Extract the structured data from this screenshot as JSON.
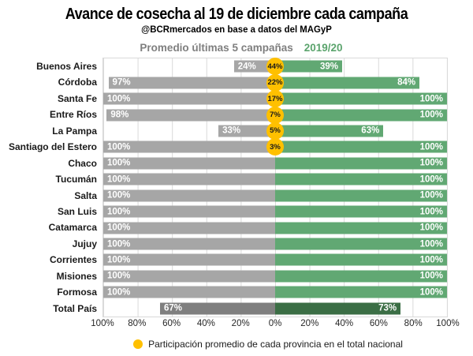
{
  "title": "Avance de cosecha al 19 de diciembre cada campaña",
  "subtitle": "@BCRmercados en base a datos del MAGyP",
  "legend": {
    "avg_label": "Promedio últimas 5 campañas",
    "current_label": "2019/20"
  },
  "footer_legend": "Participación promedio de cada provincia en el total nacional",
  "colors": {
    "avg": "#A6A6A6",
    "avg_em": "#7F7F7F",
    "cur": "#61A873",
    "cur_em": "#3B6E45",
    "part": "#FFC000",
    "grid": "#D9D9D9",
    "legend_avg": "#7F7F7F",
    "legend_cur": "#5BA46D",
    "text": "#1a1a1a"
  },
  "chart_data": {
    "type": "bar",
    "variant": "diverging-horizontal",
    "title": "Avance de cosecha al 19 de diciembre cada campaña",
    "subtitle": "@BCRmercados en base a datos del MAGyP",
    "xlim": [
      -100,
      100
    ],
    "grid": true,
    "legend_position": "top",
    "tick_labels": [
      "100%",
      "80%",
      "60%",
      "40%",
      "20%",
      "0%",
      "20%",
      "40%",
      "60%",
      "80%",
      "100%"
    ],
    "categories": [
      "Buenos Aires",
      "Córdoba",
      "Santa Fe",
      "Entre Ríos",
      "La Pampa",
      "Santiago del Estero",
      "Chaco",
      "Tucumán",
      "Salta",
      "San Luis",
      "Catamarca",
      "Jujuy",
      "Corrientes",
      "Misiones",
      "Formosa",
      "Total País"
    ],
    "emphasis_index": 15,
    "series": [
      {
        "name": "Promedio últimas 5 campañas",
        "direction": "left",
        "values": [
          24,
          97,
          100,
          98,
          33,
          100,
          100,
          100,
          100,
          100,
          100,
          100,
          100,
          100,
          100,
          67
        ],
        "labels": [
          "24%",
          "97%",
          "100%",
          "98%",
          "33%",
          "100%",
          "100%",
          "100%",
          "100%",
          "100%",
          "100%",
          "100%",
          "100%",
          "100%",
          "100%",
          "67%"
        ]
      },
      {
        "name": "2019/20",
        "direction": "right",
        "values": [
          39,
          84,
          100,
          100,
          63,
          100,
          100,
          100,
          100,
          100,
          100,
          100,
          100,
          100,
          100,
          73
        ],
        "labels": [
          "39%",
          "84%",
          "100%",
          "100%",
          "63%",
          "100%",
          "100%",
          "100%",
          "100%",
          "100%",
          "100%",
          "100%",
          "100%",
          "100%",
          "100%",
          "73%"
        ]
      }
    ],
    "participation_values": [
      44,
      22,
      17,
      7,
      5,
      3,
      null,
      null,
      null,
      null,
      null,
      null,
      null,
      null,
      null,
      null
    ],
    "participation_labels": [
      "44%",
      "22%",
      "17%",
      "7%",
      "5%",
      "3%",
      null,
      null,
      null,
      null,
      null,
      null,
      null,
      null,
      null,
      null
    ],
    "participation_legend": "Participación promedio de cada provincia en el total nacional"
  }
}
